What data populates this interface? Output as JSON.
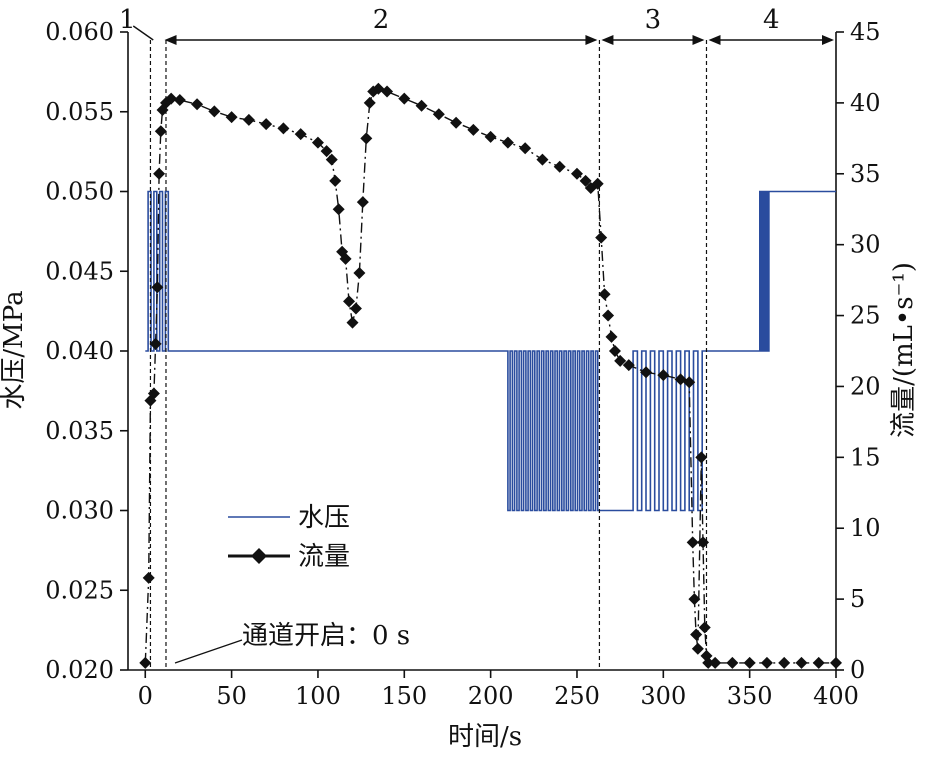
{
  "chart_data": {
    "type": "line",
    "title": "",
    "xlabel": "时间/s",
    "ylabel_left": "水压/MPa",
    "ylabel_right": "流量/(mL•s⁻¹)",
    "xlim": [
      -10,
      400
    ],
    "ylim_left": [
      0.02,
      0.06
    ],
    "ylim_right": [
      0,
      45
    ],
    "x_ticks": [
      0,
      50,
      100,
      150,
      200,
      250,
      300,
      350,
      400
    ],
    "y_left_ticks": [
      "0.020",
      "0.025",
      "0.030",
      "0.035",
      "0.040",
      "0.045",
      "0.050",
      "0.055",
      "0.060"
    ],
    "y_right_ticks": [
      0,
      5,
      10,
      15,
      20,
      25,
      30,
      35,
      40,
      45
    ],
    "legend": {
      "position": "lower-left",
      "entries": [
        "水压",
        "流量"
      ]
    },
    "annotation": "通道开启：0 s",
    "stages": [
      {
        "label": "1",
        "x_start": 0,
        "x_end": 10
      },
      {
        "label": "2",
        "x_start": 10,
        "x_end": 263
      },
      {
        "label": "3",
        "x_start": 263,
        "x_end": 325
      },
      {
        "label": "4",
        "x_start": 325,
        "x_end": 400
      }
    ],
    "stage_dividers_x": [
      3,
      12,
      263,
      325
    ],
    "series": [
      {
        "name": "水压",
        "axis": "left",
        "color": "#2a4c9e",
        "step_segments": [
          {
            "x_start": 0,
            "x_end": 15,
            "low": 0.04,
            "high": 0.05,
            "toggles": 9
          },
          {
            "x_start": 15,
            "x_end": 210,
            "value": 0.04
          },
          {
            "x_start": 210,
            "x_end": 262,
            "low": 0.03,
            "high": 0.04,
            "toggles": 40
          },
          {
            "x_start": 262,
            "x_end": 280,
            "value": 0.03
          },
          {
            "x_start": 280,
            "x_end": 325,
            "low": 0.03,
            "high": 0.04,
            "toggles": 18
          },
          {
            "x_start": 325,
            "x_end": 355,
            "value": 0.04
          },
          {
            "x_start": 355,
            "x_end": 362,
            "low": 0.04,
            "high": 0.05,
            "toggles": 8
          },
          {
            "x_start": 362,
            "x_end": 400,
            "value": 0.05
          }
        ]
      },
      {
        "name": "流量",
        "axis": "right",
        "color": "#111111",
        "points": [
          [
            0,
            0.5
          ],
          [
            2,
            6.5
          ],
          [
            3,
            19
          ],
          [
            5,
            19.5
          ],
          [
            6,
            23
          ],
          [
            7,
            27
          ],
          [
            8,
            35
          ],
          [
            9,
            38
          ],
          [
            10,
            39.5
          ],
          [
            12,
            40
          ],
          [
            15,
            40.3
          ],
          [
            20,
            40.2
          ],
          [
            30,
            39.9
          ],
          [
            40,
            39.4
          ],
          [
            50,
            39.0
          ],
          [
            60,
            38.8
          ],
          [
            70,
            38.5
          ],
          [
            80,
            38.2
          ],
          [
            90,
            37.8
          ],
          [
            100,
            37.2
          ],
          [
            105,
            36.6
          ],
          [
            108,
            36.0
          ],
          [
            110,
            34.5
          ],
          [
            112,
            32.5
          ],
          [
            114,
            29.5
          ],
          [
            116,
            29.0
          ],
          [
            118,
            26.0
          ],
          [
            120,
            24.5
          ],
          [
            122,
            25.5
          ],
          [
            124,
            28.0
          ],
          [
            126,
            33.0
          ],
          [
            128,
            37.5
          ],
          [
            130,
            40.0
          ],
          [
            132,
            40.8
          ],
          [
            135,
            41.0
          ],
          [
            140,
            40.8
          ],
          [
            150,
            40.3
          ],
          [
            160,
            39.8
          ],
          [
            170,
            39.2
          ],
          [
            180,
            38.6
          ],
          [
            190,
            38.1
          ],
          [
            200,
            37.6
          ],
          [
            210,
            37.2
          ],
          [
            220,
            36.8
          ],
          [
            230,
            36.0
          ],
          [
            240,
            35.5
          ],
          [
            250,
            35.0
          ],
          [
            255,
            34.5
          ],
          [
            258,
            34.0
          ],
          [
            262,
            34.3
          ],
          [
            264,
            30.5
          ],
          [
            266,
            26.5
          ],
          [
            268,
            25.0
          ],
          [
            270,
            23.5
          ],
          [
            272,
            22.5
          ],
          [
            275,
            21.8
          ],
          [
            280,
            21.5
          ],
          [
            290,
            21.0
          ],
          [
            300,
            20.8
          ],
          [
            310,
            20.5
          ],
          [
            315,
            20.3
          ],
          [
            317,
            9.0
          ],
          [
            318,
            5.0
          ],
          [
            319,
            2.5
          ],
          [
            320,
            1.5
          ],
          [
            322,
            15.0
          ],
          [
            323,
            9.0
          ],
          [
            324,
            3.0
          ],
          [
            325,
            1.0
          ],
          [
            326,
            0.5
          ],
          [
            330,
            0.5
          ],
          [
            340,
            0.5
          ],
          [
            350,
            0.5
          ],
          [
            360,
            0.5
          ],
          [
            370,
            0.5
          ],
          [
            380,
            0.5
          ],
          [
            390,
            0.5
          ],
          [
            400,
            0.5
          ]
        ]
      }
    ]
  }
}
